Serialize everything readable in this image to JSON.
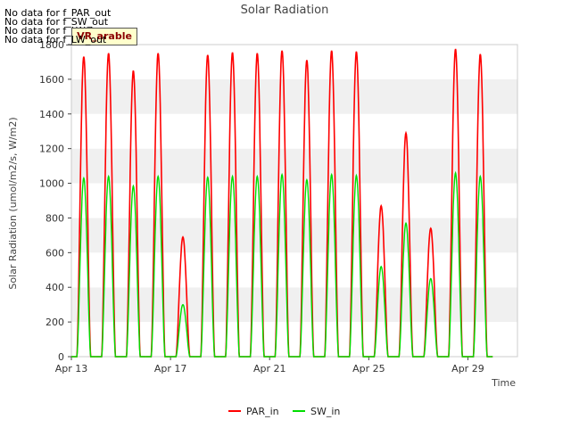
{
  "chart_data": {
    "type": "line",
    "title": "Solar Radiation",
    "xlabel": "Time",
    "ylabel": "Solar Radiation (umol/m2/s, W/m2)",
    "ylim": [
      0,
      1800
    ],
    "y_ticks": [
      0,
      200,
      400,
      600,
      800,
      1000,
      1200,
      1400,
      1600,
      1800
    ],
    "xlim_days": [
      13,
      31
    ],
    "x_ticks": [
      {
        "day": 13,
        "label": "Apr 13"
      },
      {
        "day": 17,
        "label": "Apr 17"
      },
      {
        "day": 21,
        "label": "Apr 21"
      },
      {
        "day": 25,
        "label": "Apr 25"
      },
      {
        "day": 29,
        "label": "Apr 29"
      }
    ],
    "grid": "horizontal bands",
    "legend_position": "bottom-center",
    "series": [
      {
        "name": "PAR_in",
        "color": "#ff0000",
        "daily_peak_day": [
          13.5,
          14.5,
          15.5,
          16.5,
          17.5,
          18.5,
          19.5,
          20.5,
          21.5,
          22.5,
          23.5,
          24.5,
          25.5,
          26.5,
          27.5,
          28.5,
          29.5
        ],
        "daily_peak_value": [
          1730,
          1750,
          1650,
          1750,
          690,
          1740,
          1755,
          1750,
          1765,
          1710,
          1765,
          1760,
          870,
          1290,
          740,
          1775,
          1745
        ]
      },
      {
        "name": "SW_in",
        "color": "#00dd00",
        "daily_peak_day": [
          13.5,
          14.5,
          15.5,
          16.5,
          17.5,
          18.5,
          19.5,
          20.5,
          21.5,
          22.5,
          23.5,
          24.5,
          25.5,
          26.5,
          27.5,
          28.5,
          29.5
        ],
        "daily_peak_value": [
          1030,
          1040,
          985,
          1040,
          300,
          1035,
          1040,
          1040,
          1050,
          1020,
          1050,
          1045,
          520,
          770,
          450,
          1060,
          1040
        ]
      }
    ],
    "nodata_messages": [
      "No data for f_PAR_out",
      "No data for f_SW_out",
      "No data for f_LW_in",
      "No data for f_LW_out"
    ],
    "badge": "VR_arable"
  }
}
